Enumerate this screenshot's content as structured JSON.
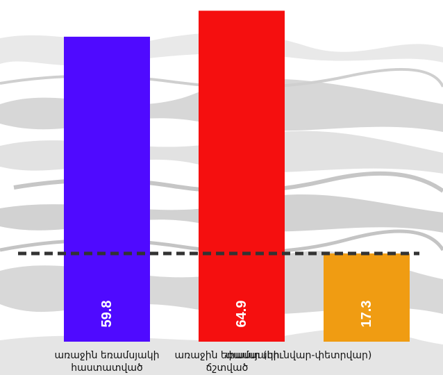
{
  "chart_data": {
    "type": "bar",
    "categories": [
      [
        "առաջին եռամսյակի",
        "հաստատված"
      ],
      [
        "առաջին եռամսյակի",
        "ճշտված"
      ],
      [
        "փաստ (հունվար-փետրվար)"
      ]
    ],
    "values": [
      59.8,
      64.9,
      17.3
    ],
    "value_labels": [
      "59.8",
      "64.9",
      "17.3"
    ],
    "colors": [
      "#4f0aff",
      "#f50f0f",
      "#f09c12"
    ],
    "reference_line": {
      "value": 17.3,
      "style": "dashed",
      "color": "#333333"
    },
    "value_label_color": "#ffffff",
    "ylim": [
      0,
      67
    ],
    "grid": false,
    "legend": "none",
    "background": "grey grunge/brush texture"
  }
}
